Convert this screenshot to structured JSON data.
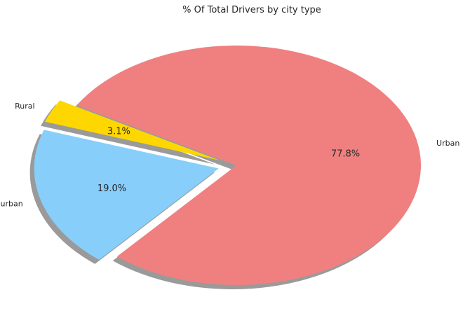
{
  "chart_data": {
    "type": "pie",
    "title": "% Of Total Drivers by city type",
    "categories": [
      "Rural",
      "Suburban",
      "Urban"
    ],
    "values": [
      3.1,
      19.0,
      77.8
    ],
    "value_labels": [
      "3.1%",
      "19.0%",
      "77.8%"
    ],
    "colors": [
      "#FFD700",
      "#87CEFA",
      "#F08080"
    ],
    "exploded": [
      "Rural",
      "Suburban"
    ],
    "shadow": true,
    "start_angle_deg": 150
  }
}
